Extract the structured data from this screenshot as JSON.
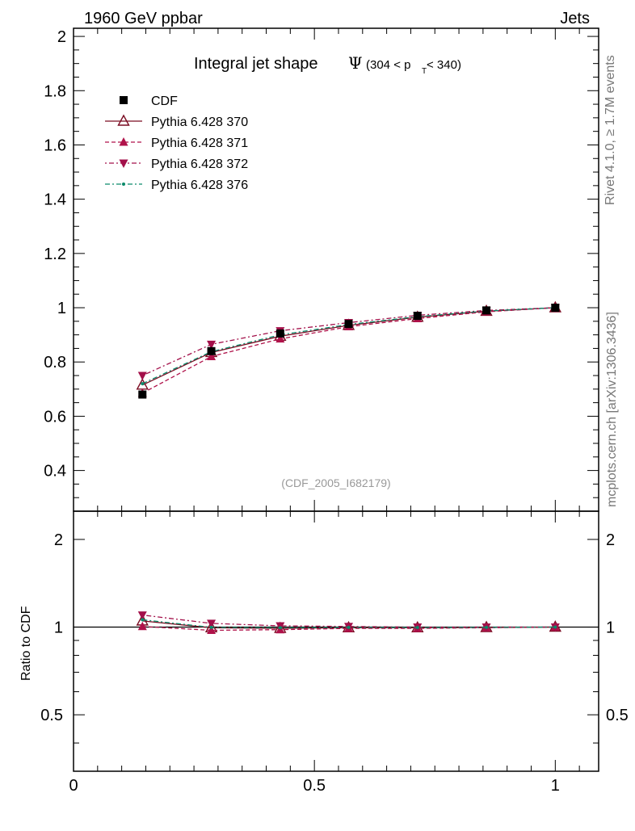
{
  "header": {
    "left": "1960 GeV ppbar",
    "right": "Jets"
  },
  "side_labels": {
    "rivet": "Rivet 4.1.0, ≥ 1.7M events",
    "mcplots": "mcplots.cern.ch [arXiv:1306.3436]"
  },
  "watermark": "(CDF_2005_I682179)",
  "colors": {
    "cdf": "#000000",
    "p370": "#7a0c22",
    "p371": "#b0124a",
    "p372": "#a3104a",
    "p376": "#0a8a6a",
    "frame": "#000000"
  },
  "chart_data": {
    "type": "line",
    "title": "Integral jet shape",
    "title_symbol": "Ψ",
    "title_range": {
      "open": "(304 < p",
      "sub": "T",
      "close": " < 340)"
    },
    "xlabel": "",
    "ylabel": "",
    "xlim": [
      0,
      1.09
    ],
    "ylim": [
      0.25,
      2.03
    ],
    "x_ticks": [
      0,
      0.5,
      1
    ],
    "x_tick_labels": [
      "0",
      "0.5",
      "1"
    ],
    "y_ticks": [
      0.4,
      0.6,
      0.8,
      1,
      1.2,
      1.4,
      1.6,
      1.8,
      2
    ],
    "y_tick_labels": [
      "0.4",
      "0.6",
      "0.8",
      "1",
      "1.2",
      "1.4",
      "1.6",
      "1.8",
      "2"
    ],
    "x": [
      0.143,
      0.286,
      0.429,
      0.571,
      0.714,
      0.857,
      1.0
    ],
    "series": [
      {
        "name": "CDF",
        "marker": "square",
        "style": "none",
        "values": [
          0.68,
          0.84,
          0.905,
          0.94,
          0.97,
          0.99,
          1.0
        ]
      },
      {
        "name": "Pythia 6.428 370",
        "marker": "triangle-up-open",
        "style": "solid",
        "values": [
          0.715,
          0.835,
          0.895,
          0.935,
          0.965,
          0.987,
          1.0
        ]
      },
      {
        "name": "Pythia 6.428 371",
        "marker": "triangle-up",
        "style": "dashed",
        "values": [
          0.685,
          0.82,
          0.885,
          0.93,
          0.96,
          0.985,
          1.0
        ]
      },
      {
        "name": "Pythia 6.428 372",
        "marker": "triangle-down",
        "style": "dashdot",
        "values": [
          0.75,
          0.865,
          0.915,
          0.945,
          0.972,
          0.99,
          1.0
        ]
      },
      {
        "name": "Pythia 6.428 376",
        "marker": "dot",
        "style": "dashdot",
        "values": [
          0.72,
          0.838,
          0.9,
          0.938,
          0.967,
          0.988,
          1.0
        ]
      }
    ],
    "ratio": {
      "ylabel": "Ratio to CDF",
      "ylim": [
        0.32,
        2.5
      ],
      "y_ticks": [
        0.5,
        1,
        2
      ],
      "y_tick_labels": [
        "0.5",
        "1",
        "2"
      ],
      "series": [
        {
          "name": "Pythia 6.428 370",
          "values": [
            1.05,
            0.995,
            0.99,
            0.995,
            0.995,
            0.997,
            1.0
          ]
        },
        {
          "name": "Pythia 6.428 371",
          "values": [
            1.005,
            0.975,
            0.98,
            0.99,
            0.99,
            0.995,
            1.0
          ]
        },
        {
          "name": "Pythia 6.428 372",
          "values": [
            1.1,
            1.03,
            1.01,
            1.005,
            1.0,
            1.0,
            1.0
          ]
        },
        {
          "name": "Pythia 6.428 376",
          "values": [
            1.06,
            0.998,
            0.995,
            0.998,
            0.997,
            0.998,
            1.0
          ]
        }
      ]
    }
  }
}
